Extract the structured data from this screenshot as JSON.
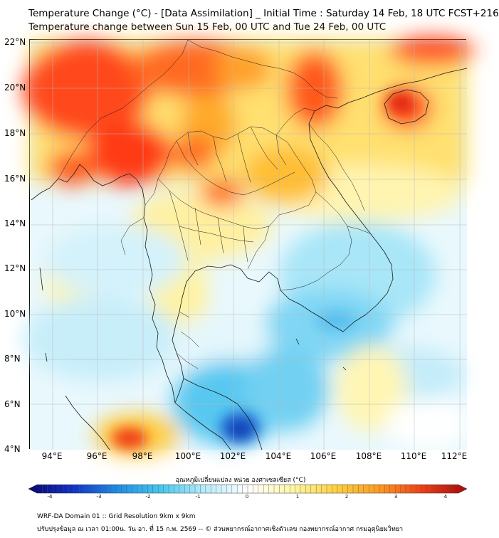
{
  "header": {
    "title_line1": "Temperature Change (°C) - [Data Assimilation] _ Initial Time : Saturday 14 Feb, 18 UTC FCST+216",
    "title_line2": "Temperature change between Sun 15 Feb, 00 UTC and Tue 24 Feb, 00 UTC"
  },
  "map": {
    "lat_labels": [
      "22°N",
      "20°N",
      "18°N",
      "16°N",
      "14°N",
      "12°N",
      "10°N",
      "8°N",
      "6°N",
      "4°N"
    ],
    "lon_labels": [
      "94°E",
      "96°E",
      "98°E",
      "100°E",
      "102°E",
      "104°E",
      "106°E",
      "108°E",
      "110°E",
      "112°E"
    ],
    "lat_range": [
      4,
      22
    ],
    "lon_range": [
      93,
      112.3
    ],
    "gridlines": true
  },
  "colorbar": {
    "title": "อุณหภูมิเปลี่ยนแปลง หน่วย องศาเซลเซียส (°C)",
    "ticks": [
      "-4",
      "-3",
      "-2",
      "-1",
      "0",
      "1",
      "2",
      "3",
      "4"
    ],
    "min": -4,
    "max": 4,
    "colors": [
      "#08086e",
      "#1030c8",
      "#1e8ce6",
      "#41c8f0",
      "#b4ecfa",
      "#ffffff",
      "#fff7a8",
      "#ffd23c",
      "#ff9a1e",
      "#f03c14",
      "#a50a0a"
    ]
  },
  "footer": {
    "line1": "WRF-DA Domain 01 :: Grid Resolution 9km x 9km",
    "line2": "ปรับปรุงข้อมูล ณ เวลา 01:00น. วัน อา. ที่ 15 ก.พ. 2569 -- © ส่วนพยากรณ์อากาศเชิงตัวเลข กองพยากรณ์อากาศ กรมอุตุนิยมวิทยา"
  }
}
